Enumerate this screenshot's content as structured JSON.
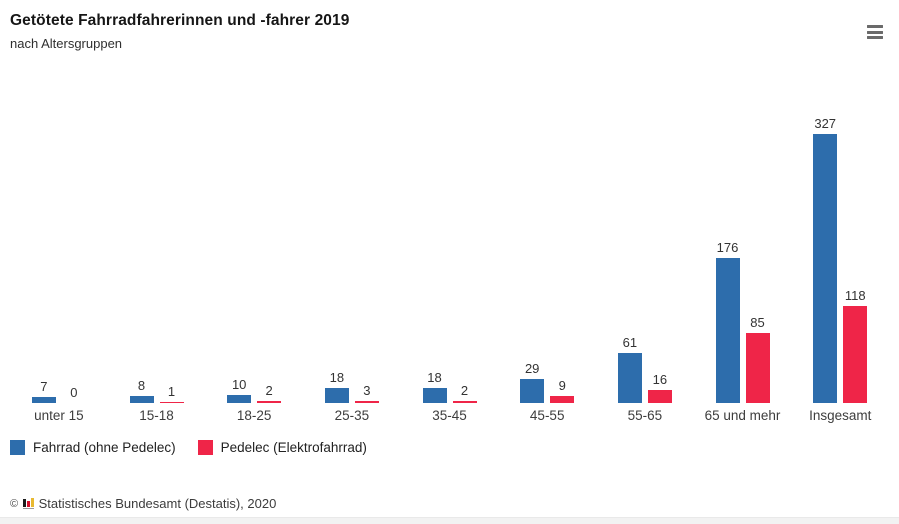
{
  "header": {
    "title": "Getötete Fahrradfahrerinnen und -fahrer 2019",
    "subtitle": "nach Altersgruppen"
  },
  "menu": {
    "icon": "hamburger-menu"
  },
  "chart_data": {
    "type": "bar",
    "title": "Getötete Fahrradfahrerinnen und -fahrer 2019",
    "subtitle": "nach Altersgruppen",
    "categories": [
      "unter 15",
      "15-18",
      "18-25",
      "25-35",
      "35-45",
      "45-55",
      "55-65",
      "65 und mehr",
      "Insgesamt"
    ],
    "series": [
      {
        "name": "Fahrrad (ohne Pedelec)",
        "color": "#2d6dac",
        "values": [
          7,
          8,
          10,
          18,
          18,
          29,
          61,
          176,
          327
        ]
      },
      {
        "name": "Pedelec (Elektrofahrrad)",
        "color": "#ef2548",
        "values": [
          0,
          1,
          2,
          3,
          2,
          9,
          16,
          85,
          118
        ]
      }
    ],
    "xlabel": "",
    "ylabel": "",
    "ylim": [
      0,
      327
    ],
    "grid": false,
    "value_labels": true,
    "legend_position": "bottom-left"
  },
  "legend": {
    "items": [
      {
        "label": "Fahrrad (ohne Pedelec)",
        "color": "#2d6dac"
      },
      {
        "label": "Pedelec (Elektrofahrrad)",
        "color": "#ef2548"
      }
    ]
  },
  "footer": {
    "copyright": "©",
    "logo": "destatis-bar-chart-logo",
    "source": "Statistisches Bundesamt (Destatis), 2020"
  }
}
